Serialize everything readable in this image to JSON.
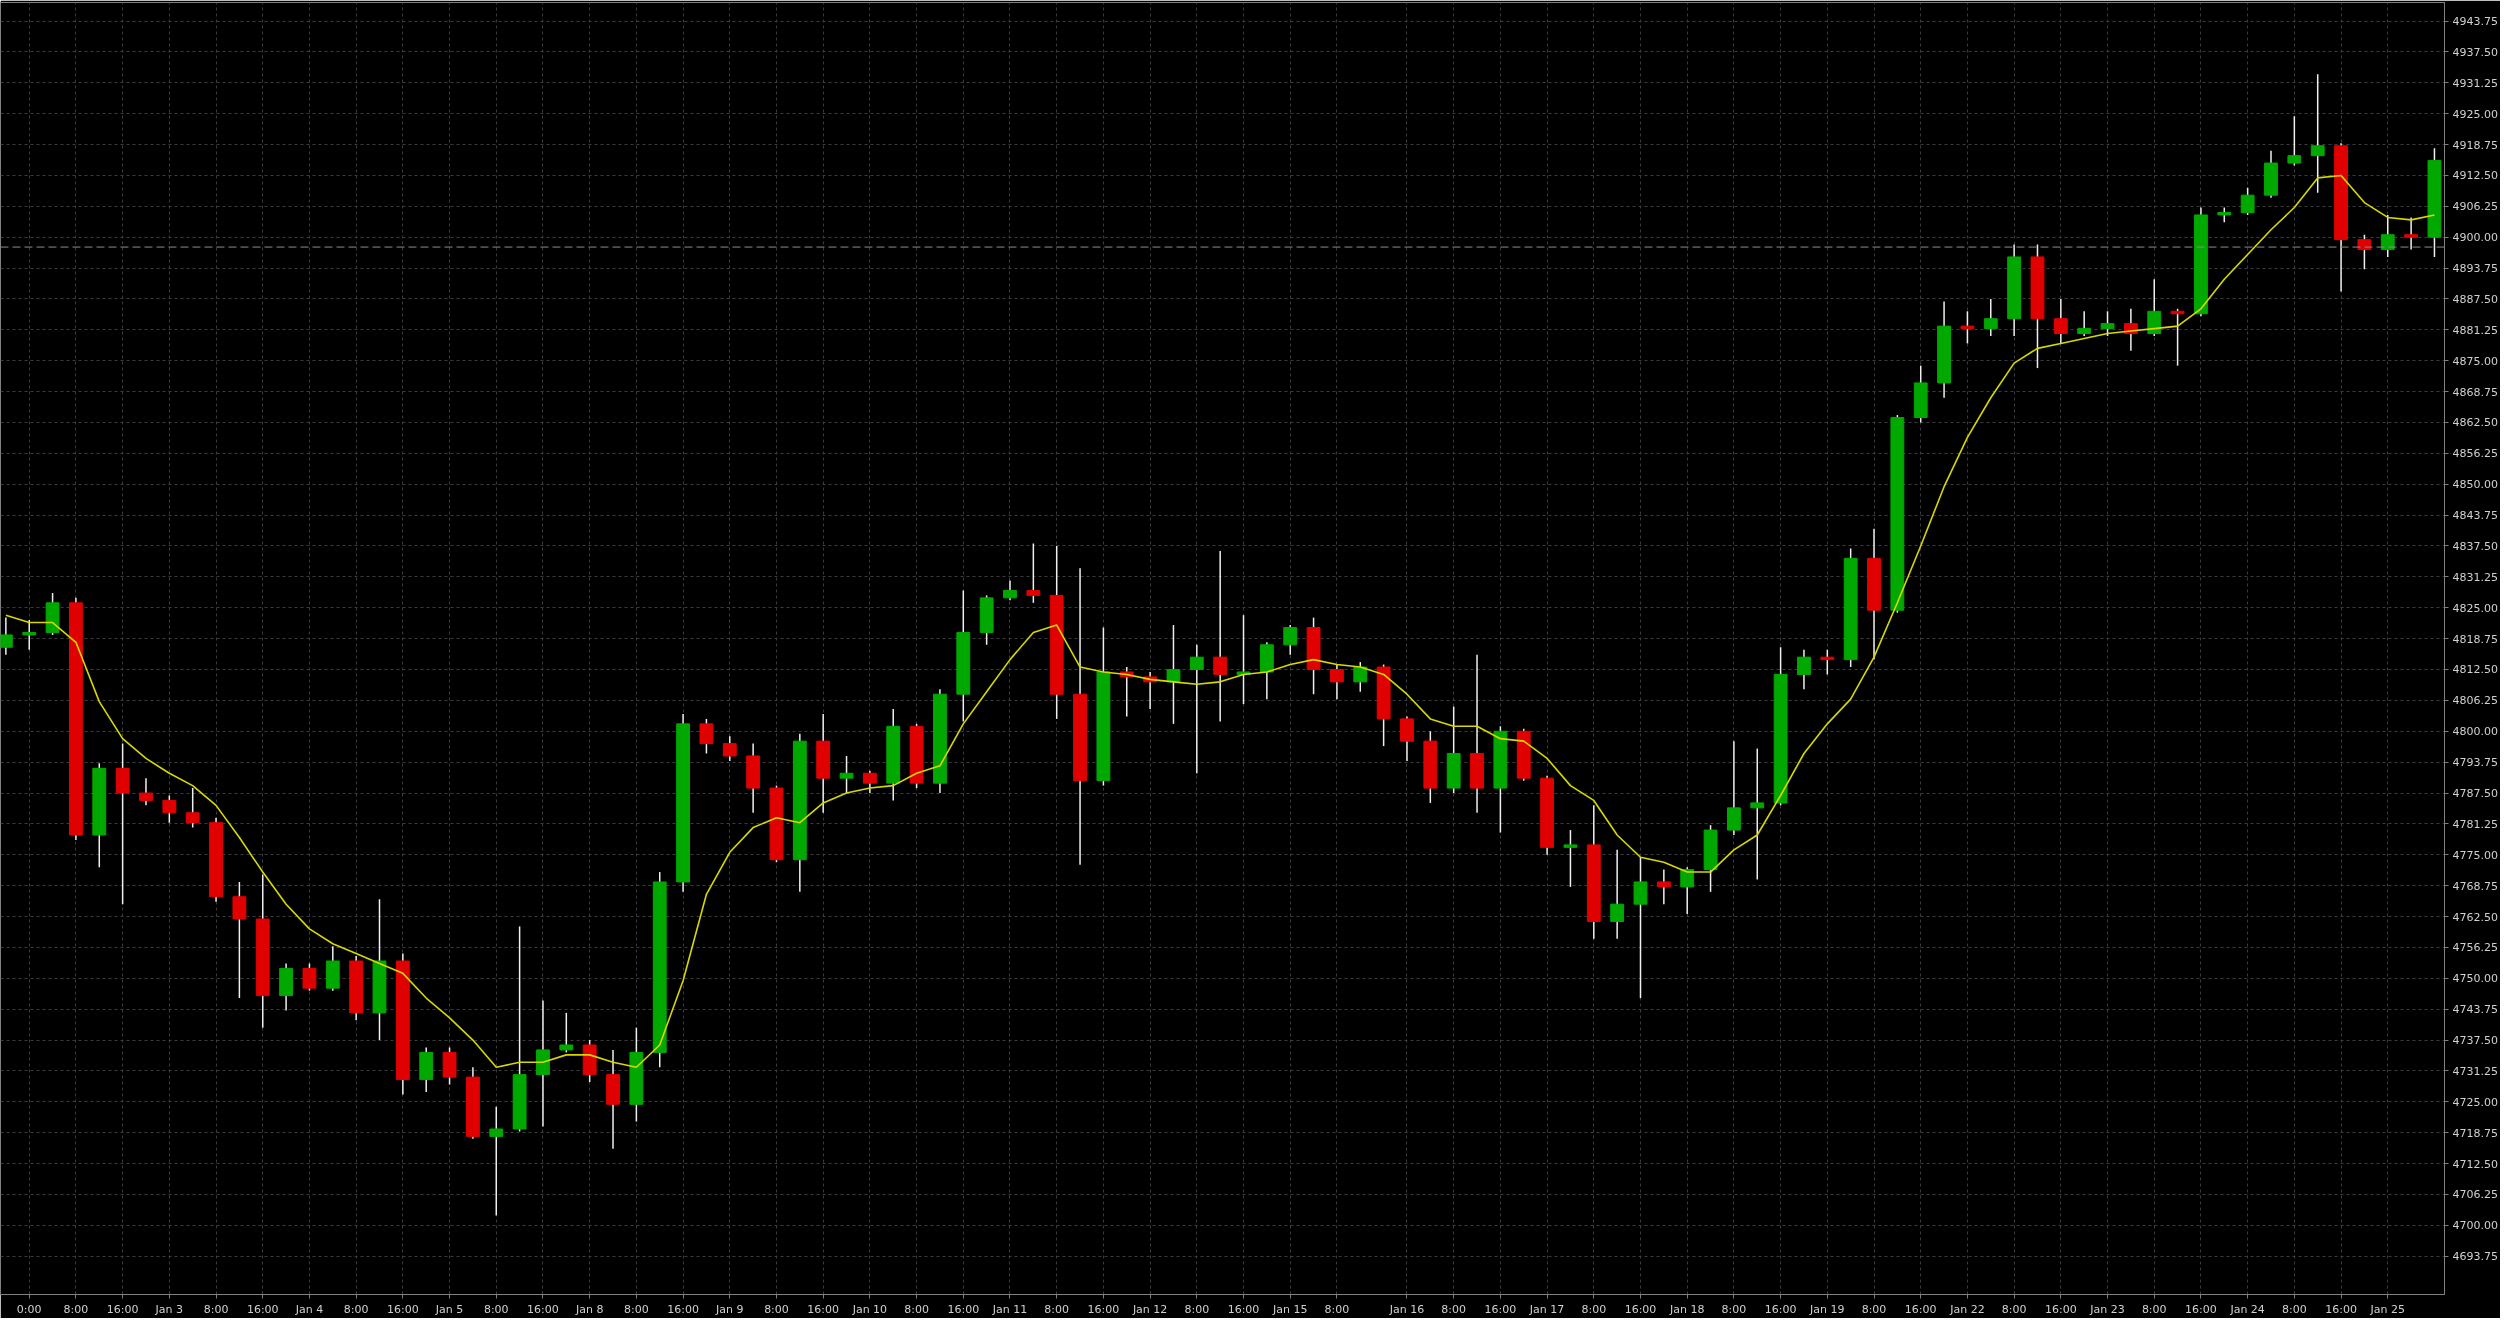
{
  "chart_data": {
    "type": "candlestick",
    "categories": [
      null,
      "0:00",
      null,
      "8:00",
      null,
      "16:00",
      null,
      "Jan 3",
      null,
      "8:00",
      null,
      "16:00",
      null,
      "Jan 4",
      null,
      "8:00",
      null,
      "16:00",
      null,
      "Jan 5",
      null,
      "8:00",
      null,
      "16:00",
      null,
      "Jan 8",
      null,
      "8:00",
      null,
      "16:00",
      null,
      "Jan 9",
      null,
      "8:00",
      null,
      "16:00",
      null,
      "Jan 10",
      null,
      "8:00",
      null,
      "16:00",
      null,
      "Jan 11",
      null,
      "8:00",
      null,
      "16:00",
      null,
      "Jan 12",
      null,
      "8:00",
      null,
      "16:00",
      null,
      "Jan 15",
      null,
      "8:00",
      null,
      null,
      "Jan 16",
      null,
      "8:00",
      null,
      "16:00",
      null,
      "Jan 17",
      null,
      "8:00",
      null,
      "16:00",
      null,
      "Jan 18",
      null,
      "8:00",
      null,
      "16:00",
      null,
      "Jan 19",
      null,
      "8:00",
      null,
      "16:00",
      null,
      "Jan 22",
      null,
      "8:00",
      null,
      "16:00",
      null,
      "Jan 23",
      null,
      "8:00",
      null,
      "16:00",
      null,
      "Jan 24",
      null,
      "8:00",
      null,
      "16:00",
      null,
      "Jan 25",
      null,
      null
    ],
    "ohlc": [
      [
        4817,
        4823,
        4815.5,
        4819.5
      ],
      [
        4819.5,
        4822.5,
        4816.5,
        4820
      ],
      [
        4820,
        4828,
        4819.5,
        4826
      ],
      [
        4826,
        4827,
        4778,
        4779
      ],
      [
        4779,
        4793.5,
        4772.5,
        4792.5
      ],
      [
        4792.5,
        4797.5,
        4765,
        4787.5
      ],
      [
        4787.5,
        4790.5,
        4785,
        4786
      ],
      [
        4786,
        4787,
        4781.5,
        4783.5
      ],
      [
        4783.5,
        4788.5,
        4780.5,
        4781.5
      ],
      [
        4781.5,
        4782.5,
        4765.5,
        4766.5
      ],
      [
        4766.5,
        4769.5,
        4746,
        4762
      ],
      [
        4762,
        4771,
        4740,
        4746.5
      ],
      [
        4746.5,
        4753,
        4743.5,
        4752
      ],
      [
        4752,
        4753,
        4747.5,
        4748
      ],
      [
        4748,
        4756.5,
        4747.5,
        4753.5
      ],
      [
        4753.5,
        4754.5,
        4741.5,
        4743
      ],
      [
        4743,
        4766,
        4737.5,
        4753.5
      ],
      [
        4753.5,
        4755,
        4726.5,
        4729.5
      ],
      [
        4729.5,
        4736,
        4727,
        4735
      ],
      [
        4735,
        4736,
        4728.5,
        4730
      ],
      [
        4730,
        4732,
        4717.5,
        4718
      ],
      [
        4718,
        4724,
        4702,
        4719.5
      ],
      [
        4719.5,
        4760.5,
        4719,
        4730.5
      ],
      [
        4730.5,
        4745.5,
        4720,
        4735.5
      ],
      [
        4735.5,
        4743,
        4735,
        4736.5
      ],
      [
        4736.5,
        4737.5,
        4729,
        4730.5
      ],
      [
        4730.5,
        4735.5,
        4715.5,
        4724.5
      ],
      [
        4724.5,
        4740,
        4721,
        4735
      ],
      [
        4735,
        4771.5,
        4732,
        4769.5
      ],
      [
        4769.5,
        4803.5,
        4767.5,
        4801.5
      ],
      [
        4801.5,
        4802.5,
        4795.5,
        4797.5
      ],
      [
        4797.5,
        4799,
        4794,
        4795
      ],
      [
        4795,
        4797.5,
        4783.5,
        4788.5
      ],
      [
        4788.5,
        4789,
        4773.5,
        4774
      ],
      [
        4774,
        4799.5,
        4767.5,
        4798
      ],
      [
        4798,
        4803.5,
        4783.5,
        4790.5
      ],
      [
        4790.5,
        4795,
        4787.5,
        4791.5
      ],
      [
        4791.5,
        4792,
        4787.5,
        4789.5
      ],
      [
        4789.5,
        4804.5,
        4786,
        4801
      ],
      [
        4801,
        4801.5,
        4788.5,
        4789.5
      ],
      [
        4789.5,
        4808.5,
        4787.5,
        4807.5
      ],
      [
        4807.5,
        4828.5,
        4802,
        4820
      ],
      [
        4820,
        4827.5,
        4817.5,
        4827
      ],
      [
        4827,
        4830.5,
        4826.5,
        4828.5
      ],
      [
        4828.5,
        4838,
        4826,
        4827.5
      ],
      [
        4827.5,
        4837.5,
        4802.5,
        4807.5
      ],
      [
        4807.5,
        4833,
        4773,
        4790
      ],
      [
        4790,
        4821,
        4789,
        4812
      ],
      [
        4812,
        4813,
        4803,
        4811
      ],
      [
        4811,
        4812,
        4804.5,
        4810
      ],
      [
        4810,
        4821.5,
        4801.5,
        4812.5
      ],
      [
        4812.5,
        4817.5,
        4791.5,
        4815
      ],
      [
        4815,
        4836.5,
        4802,
        4811.5
      ],
      [
        4811.5,
        4823.5,
        4805.5,
        4812
      ],
      [
        4812,
        4818,
        4806.5,
        4817.5
      ],
      [
        4817.5,
        4821.5,
        4815.5,
        4821
      ],
      [
        4821,
        4823,
        4807.5,
        4812.5
      ],
      [
        4812.5,
        4813.5,
        4806.5,
        4810
      ],
      [
        4810,
        4814,
        4808,
        4813
      ],
      [
        4813,
        4813.5,
        4797,
        4802.5
      ],
      [
        4802.5,
        4803,
        4794,
        4798
      ],
      [
        4798,
        4800,
        4785.5,
        4788.5
      ],
      [
        4788.5,
        4805,
        4787.5,
        4795.5
      ],
      [
        4795.5,
        4815.5,
        4783.5,
        4788.5
      ],
      [
        4788.5,
        4801,
        4779.5,
        4800
      ],
      [
        4800,
        4800.5,
        4790,
        4790.5
      ],
      [
        4790.5,
        4791,
        4775,
        4776.5
      ],
      [
        4776.5,
        4780,
        4768.5,
        4777
      ],
      [
        4777,
        4785,
        4758,
        4761.5
      ],
      [
        4761.5,
        4776,
        4758,
        4765
      ],
      [
        4765,
        4774.5,
        4746,
        4769.5
      ],
      [
        4769.5,
        4772,
        4765,
        4768.5
      ],
      [
        4768.5,
        4772.5,
        4763,
        4772
      ],
      [
        4772,
        4781,
        4767.5,
        4780
      ],
      [
        4780,
        4798,
        4779,
        4784.5
      ],
      [
        4784.5,
        4796.5,
        4770,
        4785.5
      ],
      [
        4785.5,
        4817,
        4785,
        4811.5
      ],
      [
        4811.5,
        4816.5,
        4808.5,
        4815
      ],
      [
        4815,
        4816.5,
        4811.5,
        4814.5
      ],
      [
        4814.5,
        4837,
        4813,
        4835
      ],
      [
        4835,
        4841,
        4814.5,
        4824.5
      ],
      [
        4824.5,
        4864,
        4824,
        4863.5
      ],
      [
        4863.5,
        4874,
        4862.5,
        4870.5
      ],
      [
        4870.5,
        4887,
        4867.5,
        4882
      ],
      [
        4882,
        4885,
        4878.5,
        4881.5
      ],
      [
        4881.5,
        4887.5,
        4880,
        4883.5
      ],
      [
        4883.5,
        4898.5,
        4880,
        4896
      ],
      [
        4896,
        4898.5,
        4873.5,
        4883.5
      ],
      [
        4883.5,
        4887.5,
        4878.5,
        4880.5
      ],
      [
        4880.5,
        4885,
        4880,
        4881.5
      ],
      [
        4881.5,
        4885,
        4880,
        4882.5
      ],
      [
        4882.5,
        4885.5,
        4877,
        4880.5
      ],
      [
        4880.5,
        4891.5,
        4880,
        4885
      ],
      [
        4885,
        4885.5,
        4874,
        4884.5
      ],
      [
        4884.5,
        4906,
        4884,
        4904.5
      ],
      [
        4904.5,
        4906,
        4903,
        4905
      ],
      [
        4905,
        4910,
        4904.5,
        4908.5
      ],
      [
        4908.5,
        4917.5,
        4908,
        4915
      ],
      [
        4915,
        4924.5,
        4914.5,
        4916.5
      ],
      [
        4916.5,
        4933,
        4909,
        4918.5
      ],
      [
        4918.5,
        4919,
        4889,
        4899.5
      ],
      [
        4899.5,
        4900.5,
        4893.5,
        4897.5
      ],
      [
        4897.5,
        4904.5,
        4896,
        4900.5
      ],
      [
        4900.5,
        4904,
        4897.5,
        4900
      ],
      [
        4900,
        4918,
        4896,
        4915.5
      ]
    ],
    "colors": [
      "#00a800",
      "#00a800",
      "#00a800",
      "#e00000",
      "#00a800",
      "#e00000",
      "#e00000",
      "#e00000",
      "#e00000",
      "#e00000",
      "#e00000",
      "#e00000",
      "#00a800",
      "#e00000",
      "#00a800",
      "#e00000",
      "#00a800",
      "#e00000",
      "#00a800",
      "#e00000",
      "#e00000",
      "#00a800",
      "#00a800",
      "#00a800",
      "#00a800",
      "#e00000",
      "#e00000",
      "#00a800",
      "#00a800",
      "#00a800",
      "#e00000",
      "#e00000",
      "#e00000",
      "#e00000",
      "#00a800",
      "#e00000",
      "#00a800",
      "#e00000",
      "#00a800",
      "#e00000",
      "#00a800",
      "#00a800",
      "#00a800",
      "#00a800",
      "#e00000",
      "#e00000",
      "#e00000",
      "#00a800",
      "#e00000",
      "#e00000",
      "#00a800",
      "#00a800",
      "#e00000",
      "#00a800",
      "#00a800",
      "#00a800",
      "#e00000",
      "#e00000",
      "#00a800",
      "#e00000",
      "#e00000",
      "#e00000",
      "#00a800",
      "#e00000",
      "#00a800",
      "#e00000",
      "#e00000",
      "#00a800",
      "#e00000",
      "#00a800",
      "#00a800",
      "#e00000",
      "#00a800",
      "#00a800",
      "#00a800",
      "#00a800",
      "#00a800",
      "#00a800",
      "#e00000",
      "#00a800",
      "#e00000",
      "#00a800",
      "#00a800",
      "#00a800",
      "#e00000",
      "#00a800",
      "#00a800",
      "#e00000",
      "#e00000",
      "#00a800",
      "#00a800",
      "#e00000",
      "#00a800",
      "#e00000",
      "#00a800",
      "#00a800",
      "#00a800",
      "#00a800",
      "#00a800",
      "#00a800",
      "#e00000",
      "#e00000",
      "#00a800",
      "#e00000",
      "#00a800"
    ],
    "series": [
      {
        "type": "line",
        "color": "#d8d800",
        "values": [
          4823.5,
          4822,
          4822,
          4818,
          4806,
          4798.5,
          4794.5,
          4791.5,
          4789,
          4785,
          4778.5,
          4771.5,
          4765,
          4760,
          4757,
          4755,
          4753,
          4751,
          4746,
          4742,
          4737.5,
          4732,
          4733,
          4733,
          4734.5,
          4734.5,
          4733,
          4732,
          4736.5,
          4749.5,
          4767,
          4775.5,
          4780.5,
          4782.5,
          4781.5,
          4785.5,
          4787.5,
          4788.5,
          4789,
          4791.5,
          4793,
          4801.5,
          4808,
          4814.5,
          4820,
          4821.5,
          4813,
          4812,
          4811.5,
          4810.5,
          4810,
          4809.5,
          4810,
          4811.5,
          4812,
          4813.5,
          4814.5,
          4813.5,
          4813,
          4811.5,
          4807.5,
          4802.5,
          4801,
          4801,
          4798.5,
          4798,
          4794.5,
          4789,
          4786,
          4779,
          4774.5,
          4773.5,
          4771.5,
          4771.5,
          4776,
          4779,
          4787,
          4795.5,
          4801.5,
          4806.5,
          4815,
          4826,
          4837.5,
          4849.5,
          4859.5,
          4867.5,
          4874.5,
          4877.5,
          4878.5,
          4879.5,
          4880.5,
          4881,
          4881.5,
          4882,
          4885.5,
          4891.5,
          4896.5,
          4901.5,
          4906,
          4912,
          4912.5,
          4907,
          4904,
          4903.5,
          4904.5
        ]
      }
    ],
    "ylim": [
      4686,
      4947.5
    ],
    "yticks": [
      4693.75,
      {
        "value": 4700,
        "label": "4700.00"
      },
      4706.25,
      {
        "value": 4712.5,
        "label": "4712.50"
      },
      4718.75,
      {
        "value": 4725,
        "label": "4725.00"
      },
      4731.25,
      {
        "value": 4737.5,
        "label": "4737.50"
      },
      4743.75,
      {
        "value": 4750,
        "label": "4750.00"
      },
      4756.25,
      {
        "value": 4762.5,
        "label": "4762.50"
      },
      4768.75,
      {
        "value": 4775,
        "label": "4775.00"
      },
      4781.25,
      {
        "value": 4787.5,
        "label": "4787.50"
      },
      4793.75,
      {
        "value": 4800,
        "label": "4800.00"
      },
      4806.25,
      {
        "value": 4812.5,
        "label": "4812.50"
      },
      4818.75,
      {
        "value": 4825,
        "label": "4825.00"
      },
      4831.25,
      {
        "value": 4837.5,
        "label": "4837.50"
      },
      4843.75,
      {
        "value": 4850,
        "label": "4850.00"
      },
      4856.25,
      {
        "value": 4862.5,
        "label": "4862.50"
      },
      4868.75,
      {
        "value": 4875,
        "label": "4875.00"
      },
      4881.25,
      {
        "value": 4887.5,
        "label": "4887.50"
      },
      4893.75,
      {
        "value": 4900,
        "label": "4900.00"
      },
      4906.25,
      {
        "value": 4912.5,
        "label": "4912.50"
      },
      4918.75,
      {
        "value": 4925,
        "label": "4925.00"
      },
      4931.25,
      {
        "value": 4937.5,
        "label": "4937.50"
      },
      4943.75
    ],
    "grid": true,
    "ref_lines": [
      {
        "axis": "y",
        "value": 4898,
        "color": "#8c8c8c",
        "line_style": "dashed"
      }
    ]
  }
}
